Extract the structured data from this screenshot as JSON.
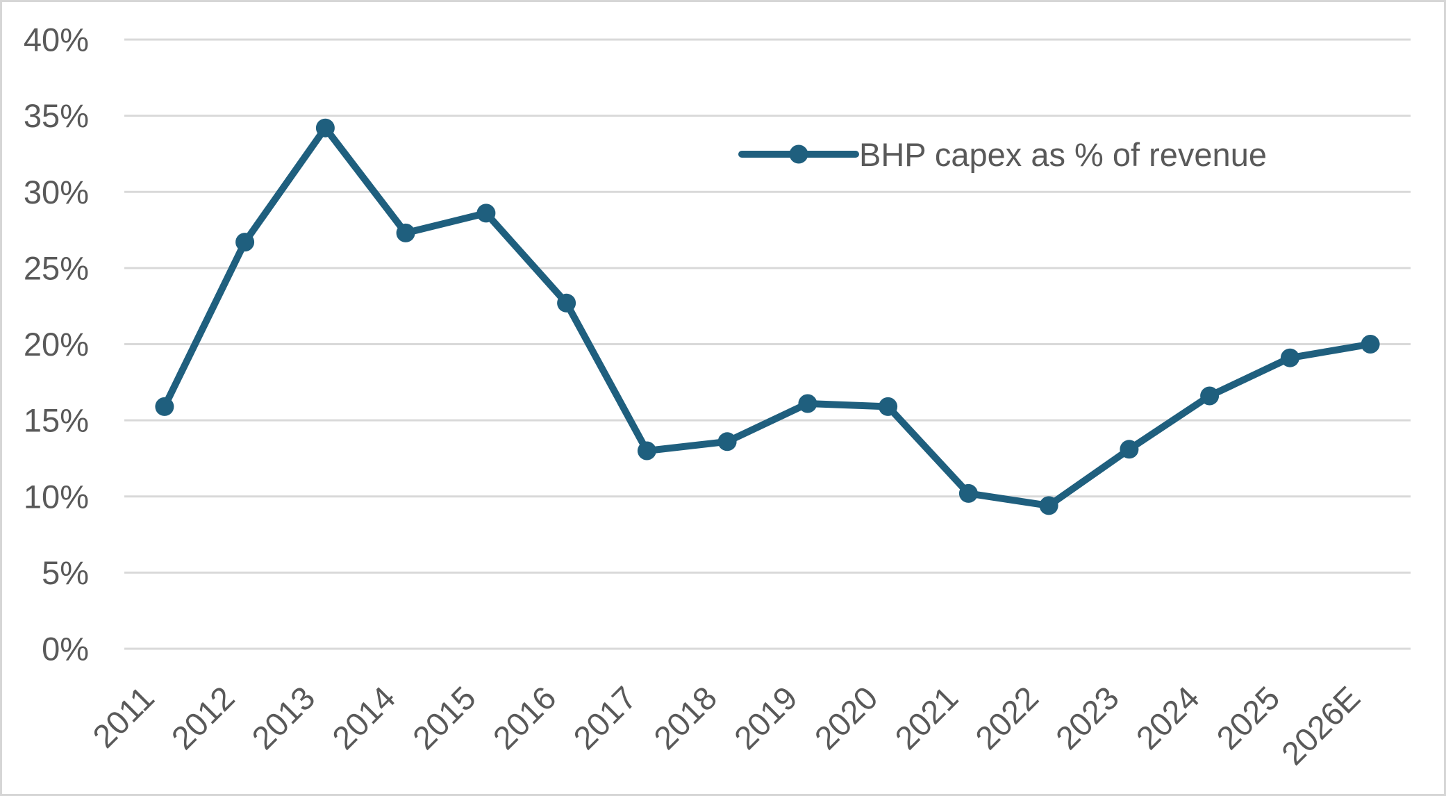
{
  "chart_data": {
    "type": "line",
    "categories": [
      "2011",
      "2012",
      "2013",
      "2014",
      "2015",
      "2016",
      "2017",
      "2018",
      "2019",
      "2020",
      "2021",
      "2022",
      "2023",
      "2024",
      "2025",
      "2026E"
    ],
    "series": [
      {
        "name": "BHP capex as % of revenue",
        "values": [
          15.9,
          26.7,
          34.2,
          27.3,
          28.6,
          22.7,
          13.0,
          13.6,
          16.1,
          15.9,
          10.2,
          9.4,
          13.1,
          16.6,
          19.1,
          20.0
        ]
      }
    ],
    "xlabel": "",
    "ylabel": "",
    "ylim": [
      0,
      40
    ],
    "yticks": [
      {
        "label": "40%",
        "value": 40
      },
      {
        "label": "35%",
        "value": 35
      },
      {
        "label": "30%",
        "value": 30
      },
      {
        "label": "25%",
        "value": 25
      },
      {
        "label": "20%",
        "value": 20
      },
      {
        "label": "15%",
        "value": 15
      },
      {
        "label": "10%",
        "value": 10
      },
      {
        "label": "5%",
        "value": 5
      },
      {
        "label": "0%",
        "value": 0
      }
    ],
    "grid": true,
    "legend_position": "inside-top-right",
    "marker": "circle",
    "x_tick_rotation_degrees": 45
  },
  "colors": {
    "line": "#1F5F7E",
    "gridline": "#D9D9D9",
    "axis_text": "#595959",
    "border": "#D6D6D6",
    "background": "#FFFFFF"
  }
}
